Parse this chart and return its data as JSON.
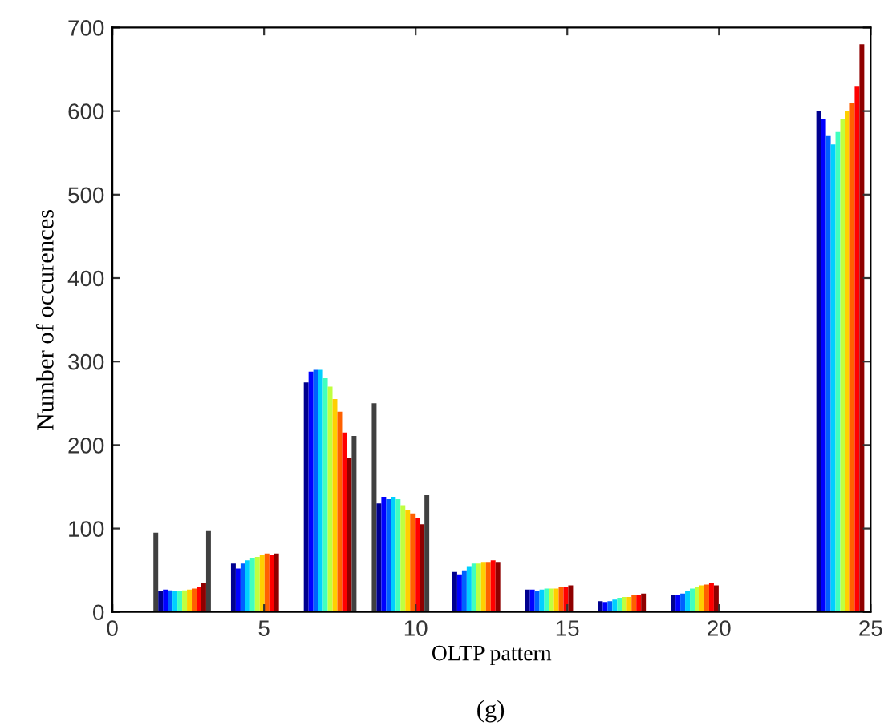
{
  "chart_data": {
    "type": "bar",
    "xlabel": "OLTP pattern",
    "ylabel": "Number of occurences",
    "annotations": [
      "(g)"
    ],
    "x": [
      2.3,
      4.7,
      7.1,
      9.5,
      12.0,
      14.4,
      16.8,
      19.2,
      21.6,
      24.0
    ],
    "xlim": [
      0,
      25
    ],
    "xticks": [
      0,
      5,
      10,
      15,
      20,
      25
    ],
    "ylim": [
      0,
      700
    ],
    "yticks": [
      0,
      100,
      200,
      300,
      400,
      500,
      600,
      700
    ],
    "grid": false,
    "legend": false,
    "series": [
      {
        "color": "#404040",
        "values": [
          95,
          null,
          null,
          250,
          null,
          null,
          null,
          null,
          null,
          null
        ]
      },
      {
        "color": "#00008f",
        "values": [
          25,
          58,
          275,
          130,
          48,
          27,
          13,
          20,
          null,
          600
        ]
      },
      {
        "color": "#0000ff",
        "values": [
          27,
          52,
          288,
          138,
          45,
          27,
          12,
          20,
          null,
          590
        ]
      },
      {
        "color": "#0060ff",
        "values": [
          26,
          58,
          290,
          135,
          50,
          25,
          13,
          22,
          null,
          570
        ]
      },
      {
        "color": "#00cfff",
        "values": [
          25,
          62,
          290,
          138,
          55,
          27,
          15,
          25,
          null,
          560
        ]
      },
      {
        "color": "#40ffbf",
        "values": [
          25,
          65,
          280,
          135,
          58,
          28,
          17,
          28,
          null,
          575
        ]
      },
      {
        "color": "#bfff40",
        "values": [
          26,
          66,
          270,
          128,
          58,
          28,
          18,
          30,
          null,
          590
        ]
      },
      {
        "color": "#ffcf00",
        "values": [
          27,
          68,
          255,
          122,
          60,
          28,
          18,
          32,
          null,
          600
        ]
      },
      {
        "color": "#ff6000",
        "values": [
          28,
          70,
          240,
          118,
          60,
          30,
          20,
          33,
          null,
          610
        ]
      },
      {
        "color": "#ff0000",
        "values": [
          30,
          68,
          215,
          112,
          62,
          30,
          20,
          35,
          null,
          630
        ]
      },
      {
        "color": "#8f0000",
        "values": [
          35,
          70,
          185,
          105,
          60,
          32,
          22,
          32,
          null,
          680
        ]
      },
      {
        "color": "#404040",
        "values": [
          97,
          null,
          211,
          140,
          null,
          null,
          null,
          null,
          null,
          null
        ]
      }
    ]
  }
}
